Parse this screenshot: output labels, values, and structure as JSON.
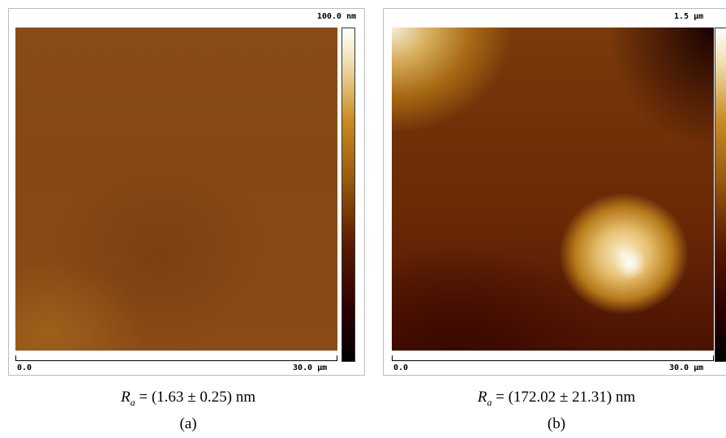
{
  "panels": [
    {
      "scale_max": "100.0 nm",
      "axis_start": "0.0",
      "axis_end": "30.0 µm",
      "caption": {
        "symbol": "R",
        "subscript": "a",
        "text": " = (1.63 ± 0.25) nm"
      },
      "label": "(a)"
    },
    {
      "scale_max": "1.5 µm",
      "axis_start": "0.0",
      "axis_end": "30.0 µm",
      "caption": {
        "symbol": "R",
        "subscript": "a",
        "text": " = (172.02 ± 21.31) nm"
      },
      "label": "(b)"
    }
  ]
}
